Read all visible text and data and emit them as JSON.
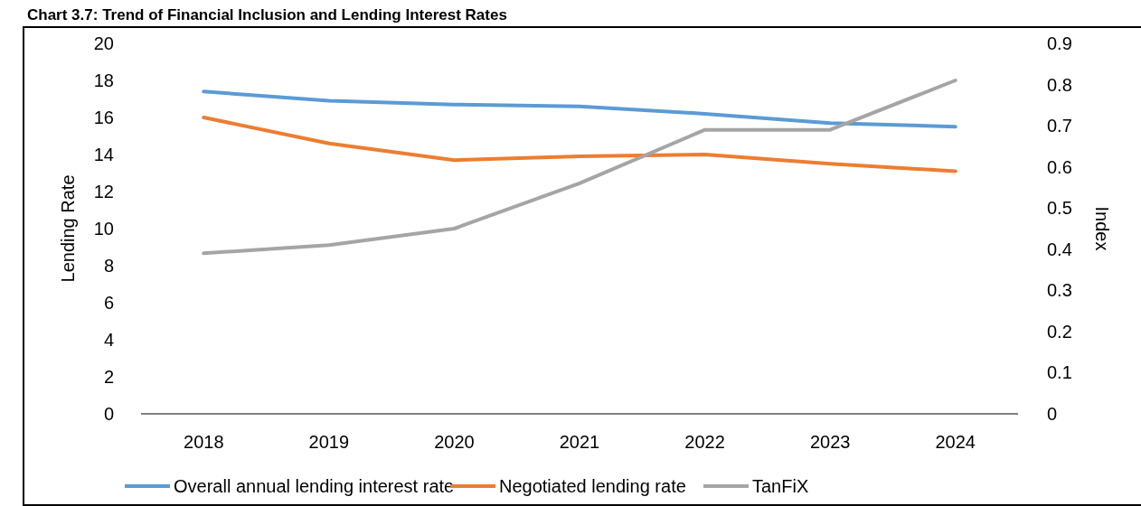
{
  "chart_data": {
    "type": "line",
    "title": "Chart 3.7: Trend of Financial Inclusion and Lending Interest Rates",
    "ylabel": "Lending Rate",
    "y2label": "Index",
    "categories": [
      "2018",
      "2019",
      "2020",
      "2021",
      "2022",
      "2023",
      "2024"
    ],
    "series": [
      {
        "name": "Overall annual lending interest rate",
        "color": "#5b9bd5",
        "values": [
          17.4,
          16.9,
          16.7,
          16.6,
          16.2,
          15.7,
          15.5
        ]
      },
      {
        "name": "Negotiated lending rate",
        "color": "#ed7d31",
        "values": [
          16.0,
          14.6,
          13.7,
          13.9,
          14.0,
          13.5,
          13.1
        ]
      },
      {
        "name": "TanFiX",
        "color": "#a5a5a5",
        "axis": "y2",
        "values": [
          0.39,
          0.41,
          0.45,
          0.56,
          0.69,
          0.69,
          0.81
        ]
      }
    ],
    "ylim": [
      0,
      20
    ],
    "yticks": [
      0,
      2,
      4,
      6,
      8,
      10,
      12,
      14,
      16,
      18,
      20
    ],
    "y2lim": [
      0,
      0.9
    ],
    "y2ticks": [
      0,
      0.1,
      0.2,
      0.3,
      0.4,
      0.5,
      0.6,
      0.7,
      0.8,
      0.9
    ],
    "grid": false,
    "legend": "bottom",
    "marker": "none",
    "line_style": "solid"
  }
}
